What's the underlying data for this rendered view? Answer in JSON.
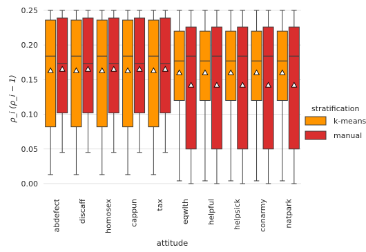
{
  "chart_data": {
    "type": "box",
    "xlabel": "attitude",
    "ylabel": "ρ_i (ρ_i − 1)",
    "ylim": [
      -0.012,
      0.257
    ],
    "yticks": [
      0.0,
      0.05,
      0.1,
      0.15,
      0.2,
      0.25
    ],
    "ytick_labels": [
      "0.00",
      "0.05",
      "0.10",
      "0.15",
      "0.20",
      "0.25"
    ],
    "grid": "horizontal",
    "categories": [
      "abdefect",
      "discaff",
      "homosex",
      "cappun",
      "tax",
      "eqwlth",
      "helpful",
      "helpsick",
      "conarmy",
      "natpark"
    ],
    "legend": {
      "title": "stratification",
      "position": "right",
      "entries": [
        "k-means",
        "manual"
      ]
    },
    "series": [
      {
        "name": "k-means",
        "color": "#FF9500",
        "boxes": [
          {
            "whislo": 0.013,
            "q1": 0.082,
            "med": 0.184,
            "q3": 0.236,
            "whishi": 0.25,
            "mean": 0.163
          },
          {
            "whislo": 0.013,
            "q1": 0.082,
            "med": 0.184,
            "q3": 0.236,
            "whishi": 0.25,
            "mean": 0.163
          },
          {
            "whislo": 0.013,
            "q1": 0.082,
            "med": 0.184,
            "q3": 0.236,
            "whishi": 0.25,
            "mean": 0.163
          },
          {
            "whislo": 0.013,
            "q1": 0.082,
            "med": 0.184,
            "q3": 0.236,
            "whishi": 0.25,
            "mean": 0.163
          },
          {
            "whislo": 0.013,
            "q1": 0.082,
            "med": 0.184,
            "q3": 0.236,
            "whishi": 0.25,
            "mean": 0.163
          },
          {
            "whislo": 0.004,
            "q1": 0.12,
            "med": 0.177,
            "q3": 0.22,
            "whishi": 0.25,
            "mean": 0.16
          },
          {
            "whislo": 0.004,
            "q1": 0.12,
            "med": 0.177,
            "q3": 0.22,
            "whishi": 0.25,
            "mean": 0.16
          },
          {
            "whislo": 0.004,
            "q1": 0.12,
            "med": 0.177,
            "q3": 0.22,
            "whishi": 0.25,
            "mean": 0.16
          },
          {
            "whislo": 0.004,
            "q1": 0.12,
            "med": 0.177,
            "q3": 0.22,
            "whishi": 0.25,
            "mean": 0.16
          },
          {
            "whislo": 0.004,
            "q1": 0.12,
            "med": 0.177,
            "q3": 0.22,
            "whishi": 0.25,
            "mean": 0.16
          }
        ]
      },
      {
        "name": "manual",
        "color": "#D92E2E",
        "boxes": [
          {
            "whislo": 0.045,
            "q1": 0.102,
            "med": 0.173,
            "q3": 0.239,
            "whishi": 0.25,
            "mean": 0.165
          },
          {
            "whislo": 0.045,
            "q1": 0.102,
            "med": 0.173,
            "q3": 0.239,
            "whishi": 0.25,
            "mean": 0.165
          },
          {
            "whislo": 0.045,
            "q1": 0.102,
            "med": 0.173,
            "q3": 0.239,
            "whishi": 0.25,
            "mean": 0.165
          },
          {
            "whislo": 0.045,
            "q1": 0.102,
            "med": 0.173,
            "q3": 0.239,
            "whishi": 0.25,
            "mean": 0.165
          },
          {
            "whislo": 0.045,
            "q1": 0.102,
            "med": 0.173,
            "q3": 0.239,
            "whishi": 0.25,
            "mean": 0.165
          },
          {
            "whislo": 0.0,
            "q1": 0.05,
            "med": 0.184,
            "q3": 0.226,
            "whishi": 0.25,
            "mean": 0.142
          },
          {
            "whislo": 0.0,
            "q1": 0.05,
            "med": 0.184,
            "q3": 0.226,
            "whishi": 0.25,
            "mean": 0.142
          },
          {
            "whislo": 0.0,
            "q1": 0.05,
            "med": 0.184,
            "q3": 0.226,
            "whishi": 0.25,
            "mean": 0.142
          },
          {
            "whislo": 0.0,
            "q1": 0.05,
            "med": 0.184,
            "q3": 0.226,
            "whishi": 0.25,
            "mean": 0.142
          },
          {
            "whislo": 0.0,
            "q1": 0.05,
            "med": 0.184,
            "q3": 0.226,
            "whishi": 0.25,
            "mean": 0.142
          }
        ]
      }
    ]
  }
}
